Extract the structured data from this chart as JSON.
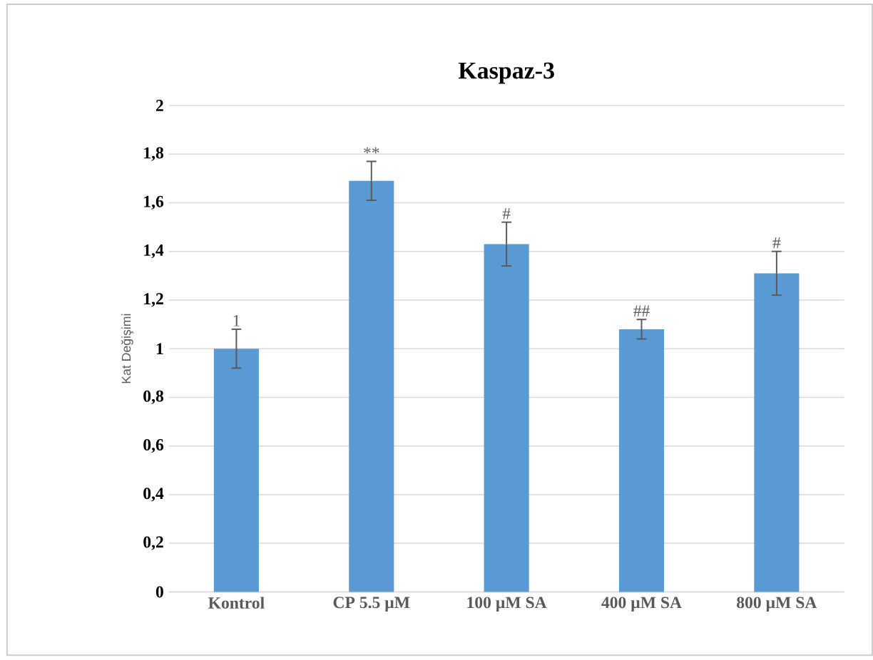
{
  "chart_data": {
    "type": "bar",
    "title": "Kaspaz-3",
    "ylabel": "Kat Değişimi",
    "categories": [
      "Kontrol",
      "CP 5.5 µM",
      "100 µM SA",
      "400 µM SA",
      "800 µM SA"
    ],
    "values": [
      1.0,
      1.69,
      1.43,
      1.08,
      1.31
    ],
    "errors": [
      0.08,
      0.08,
      0.09,
      0.04,
      0.09
    ],
    "color": "#5b9bd5",
    "ylim": [
      0,
      2
    ],
    "yticks": [
      {
        "value": 0,
        "label": "0"
      },
      {
        "value": 0.2,
        "label": "0,2"
      },
      {
        "value": 0.4,
        "label": "0,4"
      },
      {
        "value": 0.6,
        "label": "0,6"
      },
      {
        "value": 0.8,
        "label": "0,8"
      },
      {
        "value": 1,
        "label": "1"
      },
      {
        "value": 1.2,
        "label": "1,2"
      },
      {
        "value": 1.4,
        "label": "1,4"
      },
      {
        "value": 1.6,
        "label": "1,6"
      },
      {
        "value": 1.8,
        "label": "1,8"
      },
      {
        "value": 2,
        "label": "2"
      }
    ],
    "grid": "y",
    "annotations": [
      {
        "text": "1",
        "x": "Kontrol",
        "y": 1.08
      },
      {
        "text": "**",
        "x": "CP 5.5 µM",
        "y": 1.77
      },
      {
        "text": "#",
        "x": "100 µM SA",
        "y": 1.52
      },
      {
        "text": "##",
        "x": "400 µM SA",
        "y": 1.12
      },
      {
        "text": "#",
        "x": "800 µM SA",
        "y": 1.4
      }
    ]
  }
}
